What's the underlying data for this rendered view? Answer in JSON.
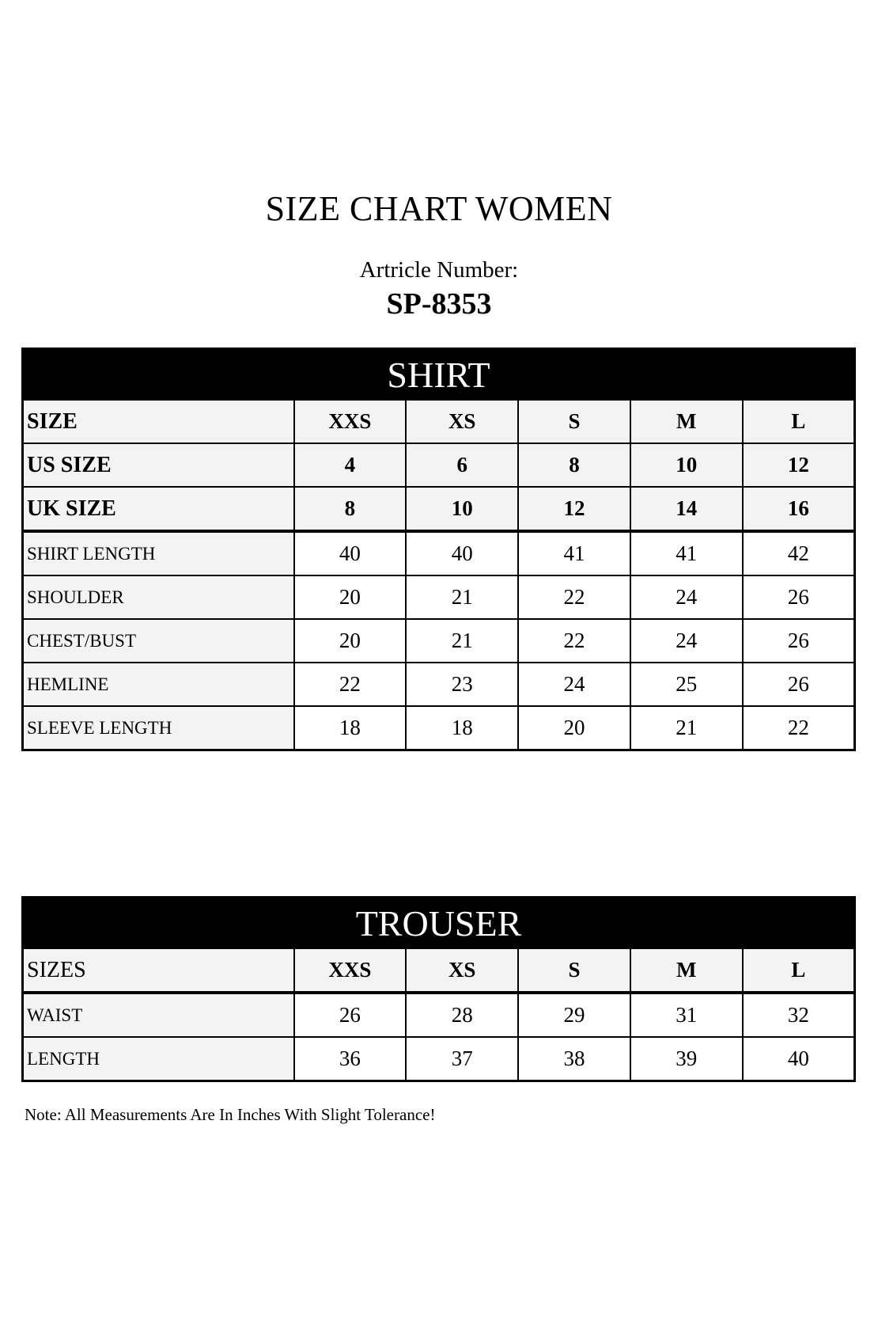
{
  "title": "SIZE CHART WOMEN",
  "article_label": "Artricle Number:",
  "article_number": "SP-8353",
  "shirt": {
    "heading": "SHIRT",
    "header_rows": [
      {
        "label": "SIZE",
        "values": [
          "XXS",
          "XS",
          "S",
          "M",
          "L"
        ]
      },
      {
        "label": "US SIZE",
        "values": [
          "4",
          "6",
          "8",
          "10",
          "12"
        ]
      },
      {
        "label": "UK SIZE",
        "values": [
          "8",
          "10",
          "12",
          "14",
          "16"
        ]
      }
    ],
    "rows": [
      {
        "label": "SHIRT LENGTH",
        "values": [
          "40",
          "40",
          "41",
          "41",
          "42"
        ]
      },
      {
        "label": "SHOULDER",
        "values": [
          "20",
          "21",
          "22",
          "24",
          "26"
        ]
      },
      {
        "label": "CHEST/BUST",
        "values": [
          "20",
          "21",
          "22",
          "24",
          "26"
        ]
      },
      {
        "label": "HEMLINE",
        "values": [
          "22",
          "23",
          "24",
          "25",
          "26"
        ]
      },
      {
        "label": "SLEEVE LENGTH",
        "values": [
          "18",
          "18",
          "20",
          "21",
          "22"
        ]
      }
    ]
  },
  "trouser": {
    "heading": "TROUSER",
    "header_row": {
      "label": "SIZES",
      "values": [
        "XXS",
        "XS",
        "S",
        "M",
        "L"
      ]
    },
    "rows": [
      {
        "label": "WAIST",
        "values": [
          "26",
          "28",
          "29",
          "31",
          "32"
        ]
      },
      {
        "label": "LENGTH",
        "values": [
          "36",
          "37",
          "38",
          "39",
          "40"
        ]
      }
    ]
  },
  "note": "Note: All Measurements Are In Inches With Slight Tolerance!"
}
